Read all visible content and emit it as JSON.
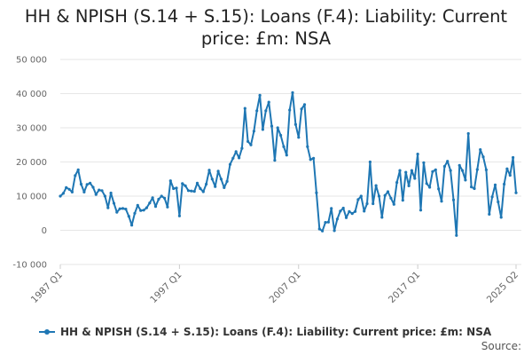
{
  "chart_data": {
    "type": "line",
    "title": "HH & NPISH (S.14 + S.15): Loans (F.4): Liability: Current price: £m: NSA",
    "xlabel": "",
    "ylabel": "",
    "ylim": [
      -10000,
      50000
    ],
    "y_ticks": [
      -10000,
      0,
      10000,
      20000,
      30000,
      40000,
      50000
    ],
    "y_tick_labels": [
      "-10 000",
      "0",
      "10 000",
      "20 000",
      "30 000",
      "40 000",
      "50 000"
    ],
    "x_tick_labels": [
      "1987 Q1",
      "1997 Q1",
      "2007 Q1",
      "2017 Q1",
      "2025 Q2"
    ],
    "x_start": "1987 Q1",
    "x_end": "2025 Q2",
    "grid": true,
    "legend_position": "bottom",
    "series": [
      {
        "name": "HH & NPISH (S.14 + S.15): Loans (F.4): Liability: Current price: £m: NSA",
        "color": "#1f77b4",
        "values": [
          10000,
          10800,
          12500,
          12000,
          11200,
          16000,
          17700,
          13500,
          11200,
          13400,
          13800,
          12600,
          10500,
          11800,
          11600,
          10000,
          6600,
          10900,
          7900,
          5300,
          6300,
          6400,
          6200,
          4100,
          1500,
          5000,
          7300,
          5800,
          5900,
          6600,
          8000,
          9500,
          7000,
          9100,
          10000,
          9400,
          6800,
          14500,
          12200,
          12400,
          4200,
          13700,
          13000,
          11600,
          11500,
          11400,
          13800,
          12200,
          11300,
          13500,
          17600,
          15000,
          12800,
          17300,
          15000,
          12500,
          14300,
          19300,
          21100,
          23000,
          21200,
          24000,
          35700,
          26000,
          25000,
          29000,
          35000,
          39500,
          29500,
          35000,
          37500,
          30500,
          20500,
          30000,
          27800,
          24500,
          22000,
          35200,
          40300,
          31000,
          27200,
          35500,
          36800,
          24500,
          20700,
          21100,
          11000,
          400,
          -200,
          2300,
          2400,
          6400,
          -100,
          3300,
          5600,
          6500,
          3700,
          5500,
          4900,
          5500,
          9000,
          10000,
          5600,
          7800,
          20000,
          7800,
          13100,
          10000,
          3800,
          10200,
          11300,
          9400,
          7600,
          14000,
          17500,
          8800,
          17000,
          13000,
          17500,
          15200,
          22300,
          5900,
          19800,
          13700,
          12600,
          17200,
          17700,
          12100,
          8500,
          18700,
          20200,
          17500,
          8900,
          -1500,
          19000,
          17500,
          14700,
          28300,
          12700,
          12200,
          17800,
          23600,
          21500,
          17700,
          4700,
          9800,
          13300,
          8300,
          3800,
          13500,
          18000,
          16100,
          21300,
          11000
        ]
      }
    ]
  },
  "legend": {
    "label": "HH & NPISH (S.14 + S.15): Loans (F.4): Liability: Current price: £m: NSA"
  },
  "footer": {
    "source_label": "Source:"
  }
}
